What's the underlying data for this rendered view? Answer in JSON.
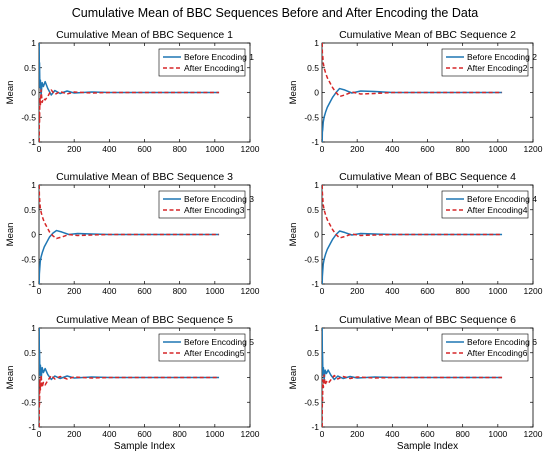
{
  "title": "Cumulative Mean of BBC Sequences Before and After Encoding the Data",
  "colors": {
    "before": "#1f77b4",
    "after": "#d62728"
  },
  "chart_data": [
    {
      "type": "line",
      "title": "Cumulative Mean of BBC Sequence 1",
      "xlabel": "",
      "ylabel": "Mean",
      "xlim": [
        0,
        1200
      ],
      "ylim": [
        -1,
        1
      ],
      "xticks": [
        "0",
        "200",
        "400",
        "600",
        "800",
        "1000",
        "1200"
      ],
      "yticks": [
        "-1",
        "-0.5",
        "0",
        "0.5",
        "1"
      ],
      "grid": false,
      "legend": "top-right",
      "series": [
        {
          "name": "Before Encoding 1",
          "x": [
            1,
            2,
            3,
            5,
            8,
            12,
            18,
            25,
            35,
            50,
            70,
            90,
            120,
            160,
            200,
            300,
            400,
            600,
            800,
            1024
          ],
          "y": [
            1,
            0.3,
            0.6,
            0.1,
            0.25,
            -0.05,
            0.2,
            0.12,
            0.22,
            0.08,
            -0.05,
            0.04,
            -0.02,
            0.03,
            -0.01,
            0.01,
            0,
            0,
            0,
            0
          ]
        },
        {
          "name": "After Encoding1",
          "x": [
            1,
            2,
            3,
            5,
            8,
            12,
            18,
            25,
            35,
            50,
            70,
            90,
            120,
            160,
            200,
            300,
            400,
            600,
            800,
            1024
          ],
          "y": [
            -1,
            -0.4,
            -0.6,
            -0.1,
            -0.25,
            0.05,
            -0.2,
            -0.12,
            -0.15,
            -0.08,
            0.05,
            -0.04,
            0.02,
            -0.03,
            0.01,
            -0.01,
            0,
            0,
            0,
            0
          ]
        }
      ]
    },
    {
      "type": "line",
      "title": "Cumulative Mean of BBC Sequence 2",
      "xlabel": "",
      "ylabel": "Mean",
      "xlim": [
        0,
        1200
      ],
      "ylim": [
        -1,
        1
      ],
      "xticks": [
        "0",
        "200",
        "400",
        "600",
        "800",
        "1000",
        "1200"
      ],
      "yticks": [
        "-1",
        "-0.5",
        "0",
        "0.5",
        "1"
      ],
      "grid": false,
      "legend": "top-right",
      "series": [
        {
          "name": "Before Encoding 2",
          "x": [
            1,
            2,
            4,
            7,
            12,
            20,
            30,
            45,
            60,
            80,
            100,
            130,
            170,
            220,
            300,
            400,
            600,
            800,
            1024
          ],
          "y": [
            -1,
            -0.8,
            -0.75,
            -0.6,
            -0.5,
            -0.4,
            -0.3,
            -0.2,
            -0.1,
            0,
            0.08,
            0.05,
            -0.01,
            0.03,
            0.02,
            0,
            0,
            0,
            0
          ]
        },
        {
          "name": "After Encoding2",
          "x": [
            1,
            2,
            4,
            7,
            12,
            20,
            30,
            45,
            60,
            80,
            100,
            130,
            170,
            220,
            300,
            400,
            600,
            800,
            1024
          ],
          "y": [
            1,
            0.8,
            0.75,
            0.6,
            0.5,
            0.4,
            0.3,
            0.2,
            0.1,
            0,
            -0.08,
            -0.05,
            0.01,
            -0.03,
            -0.02,
            0,
            0,
            0,
            0
          ]
        }
      ]
    },
    {
      "type": "line",
      "title": "Cumulative Mean of BBC Sequence 3",
      "xlabel": "",
      "ylabel": "Mean",
      "xlim": [
        0,
        1200
      ],
      "ylim": [
        -1,
        1
      ],
      "xticks": [
        "0",
        "200",
        "400",
        "600",
        "800",
        "1000",
        "1200"
      ],
      "yticks": [
        "-1",
        "-0.5",
        "0",
        "0.5",
        "1"
      ],
      "grid": false,
      "legend": "top-right",
      "series": [
        {
          "name": "Before Encoding 3",
          "x": [
            1,
            2,
            4,
            7,
            12,
            20,
            30,
            45,
            60,
            80,
            100,
            130,
            170,
            220,
            300,
            400,
            600,
            800,
            1024
          ],
          "y": [
            -1,
            -0.8,
            -0.7,
            -0.55,
            -0.45,
            -0.35,
            -0.25,
            -0.15,
            -0.05,
            0.03,
            0.08,
            0.05,
            0,
            0.02,
            0.01,
            0,
            0,
            0,
            0
          ]
        },
        {
          "name": "After Encoding3",
          "x": [
            1,
            2,
            4,
            7,
            12,
            20,
            30,
            45,
            60,
            80,
            100,
            130,
            170,
            220,
            300,
            400,
            600,
            800,
            1024
          ],
          "y": [
            1,
            0.8,
            0.7,
            0.55,
            0.45,
            0.35,
            0.25,
            0.15,
            0.05,
            -0.03,
            -0.08,
            -0.05,
            0,
            -0.02,
            -0.01,
            0,
            0,
            0,
            0
          ]
        }
      ]
    },
    {
      "type": "line",
      "title": "Cumulative Mean of BBC Sequence 4",
      "xlabel": "",
      "ylabel": "Mean",
      "xlim": [
        0,
        1200
      ],
      "ylim": [
        -1,
        1
      ],
      "xticks": [
        "0",
        "200",
        "400",
        "600",
        "800",
        "1000",
        "1200"
      ],
      "yticks": [
        "-1",
        "-0.5",
        "0",
        "0.5",
        "1"
      ],
      "grid": false,
      "legend": "top-right",
      "series": [
        {
          "name": "Before Encoding 4",
          "x": [
            1,
            2,
            4,
            7,
            12,
            20,
            30,
            45,
            60,
            80,
            100,
            130,
            170,
            220,
            300,
            400,
            600,
            800,
            1024
          ],
          "y": [
            -1,
            -0.85,
            -0.75,
            -0.6,
            -0.5,
            -0.4,
            -0.3,
            -0.2,
            -0.1,
            0,
            0.07,
            0.04,
            -0.01,
            0.02,
            0.01,
            0,
            0,
            0,
            0
          ]
        },
        {
          "name": "After Encoding4",
          "x": [
            1,
            2,
            4,
            7,
            12,
            20,
            30,
            45,
            60,
            80,
            100,
            130,
            170,
            220,
            300,
            400,
            600,
            800,
            1024
          ],
          "y": [
            1,
            0.85,
            0.75,
            0.6,
            0.5,
            0.4,
            0.3,
            0.2,
            0.1,
            0,
            -0.07,
            -0.04,
            0.01,
            -0.02,
            -0.01,
            0,
            0,
            0,
            0
          ]
        }
      ]
    },
    {
      "type": "line",
      "title": "Cumulative Mean of BBC Sequence 5",
      "xlabel": "Sample Index",
      "ylabel": "Mean",
      "xlim": [
        0,
        1200
      ],
      "ylim": [
        -1,
        1
      ],
      "xticks": [
        "0",
        "200",
        "400",
        "600",
        "800",
        "1000",
        "1200"
      ],
      "yticks": [
        "-1",
        "-0.5",
        "0",
        "0.5",
        "1"
      ],
      "grid": false,
      "legend": "top-right",
      "series": [
        {
          "name": "Before Encoding 5",
          "x": [
            1,
            2,
            3,
            5,
            8,
            12,
            18,
            25,
            35,
            50,
            70,
            90,
            120,
            160,
            200,
            300,
            400,
            600,
            800,
            1024
          ],
          "y": [
            1,
            0.3,
            0.55,
            0.05,
            0.25,
            -0.05,
            0.2,
            0.1,
            0.18,
            0.06,
            -0.04,
            0.03,
            -0.02,
            0.03,
            -0.01,
            0.01,
            0,
            0,
            0,
            0
          ]
        },
        {
          "name": "After Encoding5",
          "x": [
            1,
            2,
            3,
            5,
            8,
            12,
            18,
            25,
            35,
            50,
            70,
            90,
            120,
            160,
            200,
            300,
            400,
            600,
            800,
            1024
          ],
          "y": [
            -1,
            -0.3,
            -0.55,
            -0.05,
            -0.25,
            0.05,
            -0.2,
            -0.1,
            -0.15,
            -0.06,
            0.04,
            -0.03,
            0.02,
            -0.03,
            0.01,
            -0.01,
            0,
            0,
            0,
            0
          ]
        }
      ]
    },
    {
      "type": "line",
      "title": "Cumulative Mean of BBC Sequence 6",
      "xlabel": "Sample Index",
      "ylabel": "Mean",
      "xlim": [
        0,
        1200
      ],
      "ylim": [
        -1,
        1
      ],
      "xticks": [
        "0",
        "200",
        "400",
        "600",
        "800",
        "1000",
        "1200"
      ],
      "yticks": [
        "-1",
        "-0.5",
        "0",
        "0.5",
        "1"
      ],
      "grid": false,
      "legend": "top-right",
      "series": [
        {
          "name": "Before Encoding 6",
          "x": [
            1,
            2,
            3,
            5,
            8,
            12,
            18,
            25,
            35,
            50,
            70,
            90,
            120,
            160,
            200,
            300,
            400,
            600,
            800,
            1024
          ],
          "y": [
            1,
            0.3,
            0.5,
            0.05,
            0.2,
            -0.05,
            0.15,
            0.08,
            0.15,
            0.05,
            -0.04,
            0.03,
            -0.02,
            0.02,
            -0.01,
            0.01,
            0,
            0,
            0,
            0
          ]
        },
        {
          "name": "After Encoding6",
          "x": [
            1,
            2,
            3,
            5,
            8,
            12,
            18,
            25,
            35,
            50,
            70,
            90,
            120,
            160,
            200,
            300,
            400,
            600,
            800,
            1024
          ],
          "y": [
            -1,
            -0.3,
            -0.5,
            -0.05,
            -0.2,
            0.05,
            -0.15,
            -0.08,
            -0.12,
            -0.05,
            0.04,
            -0.03,
            0.02,
            -0.02,
            0.01,
            -0.01,
            0,
            0,
            0,
            0
          ]
        }
      ]
    }
  ]
}
